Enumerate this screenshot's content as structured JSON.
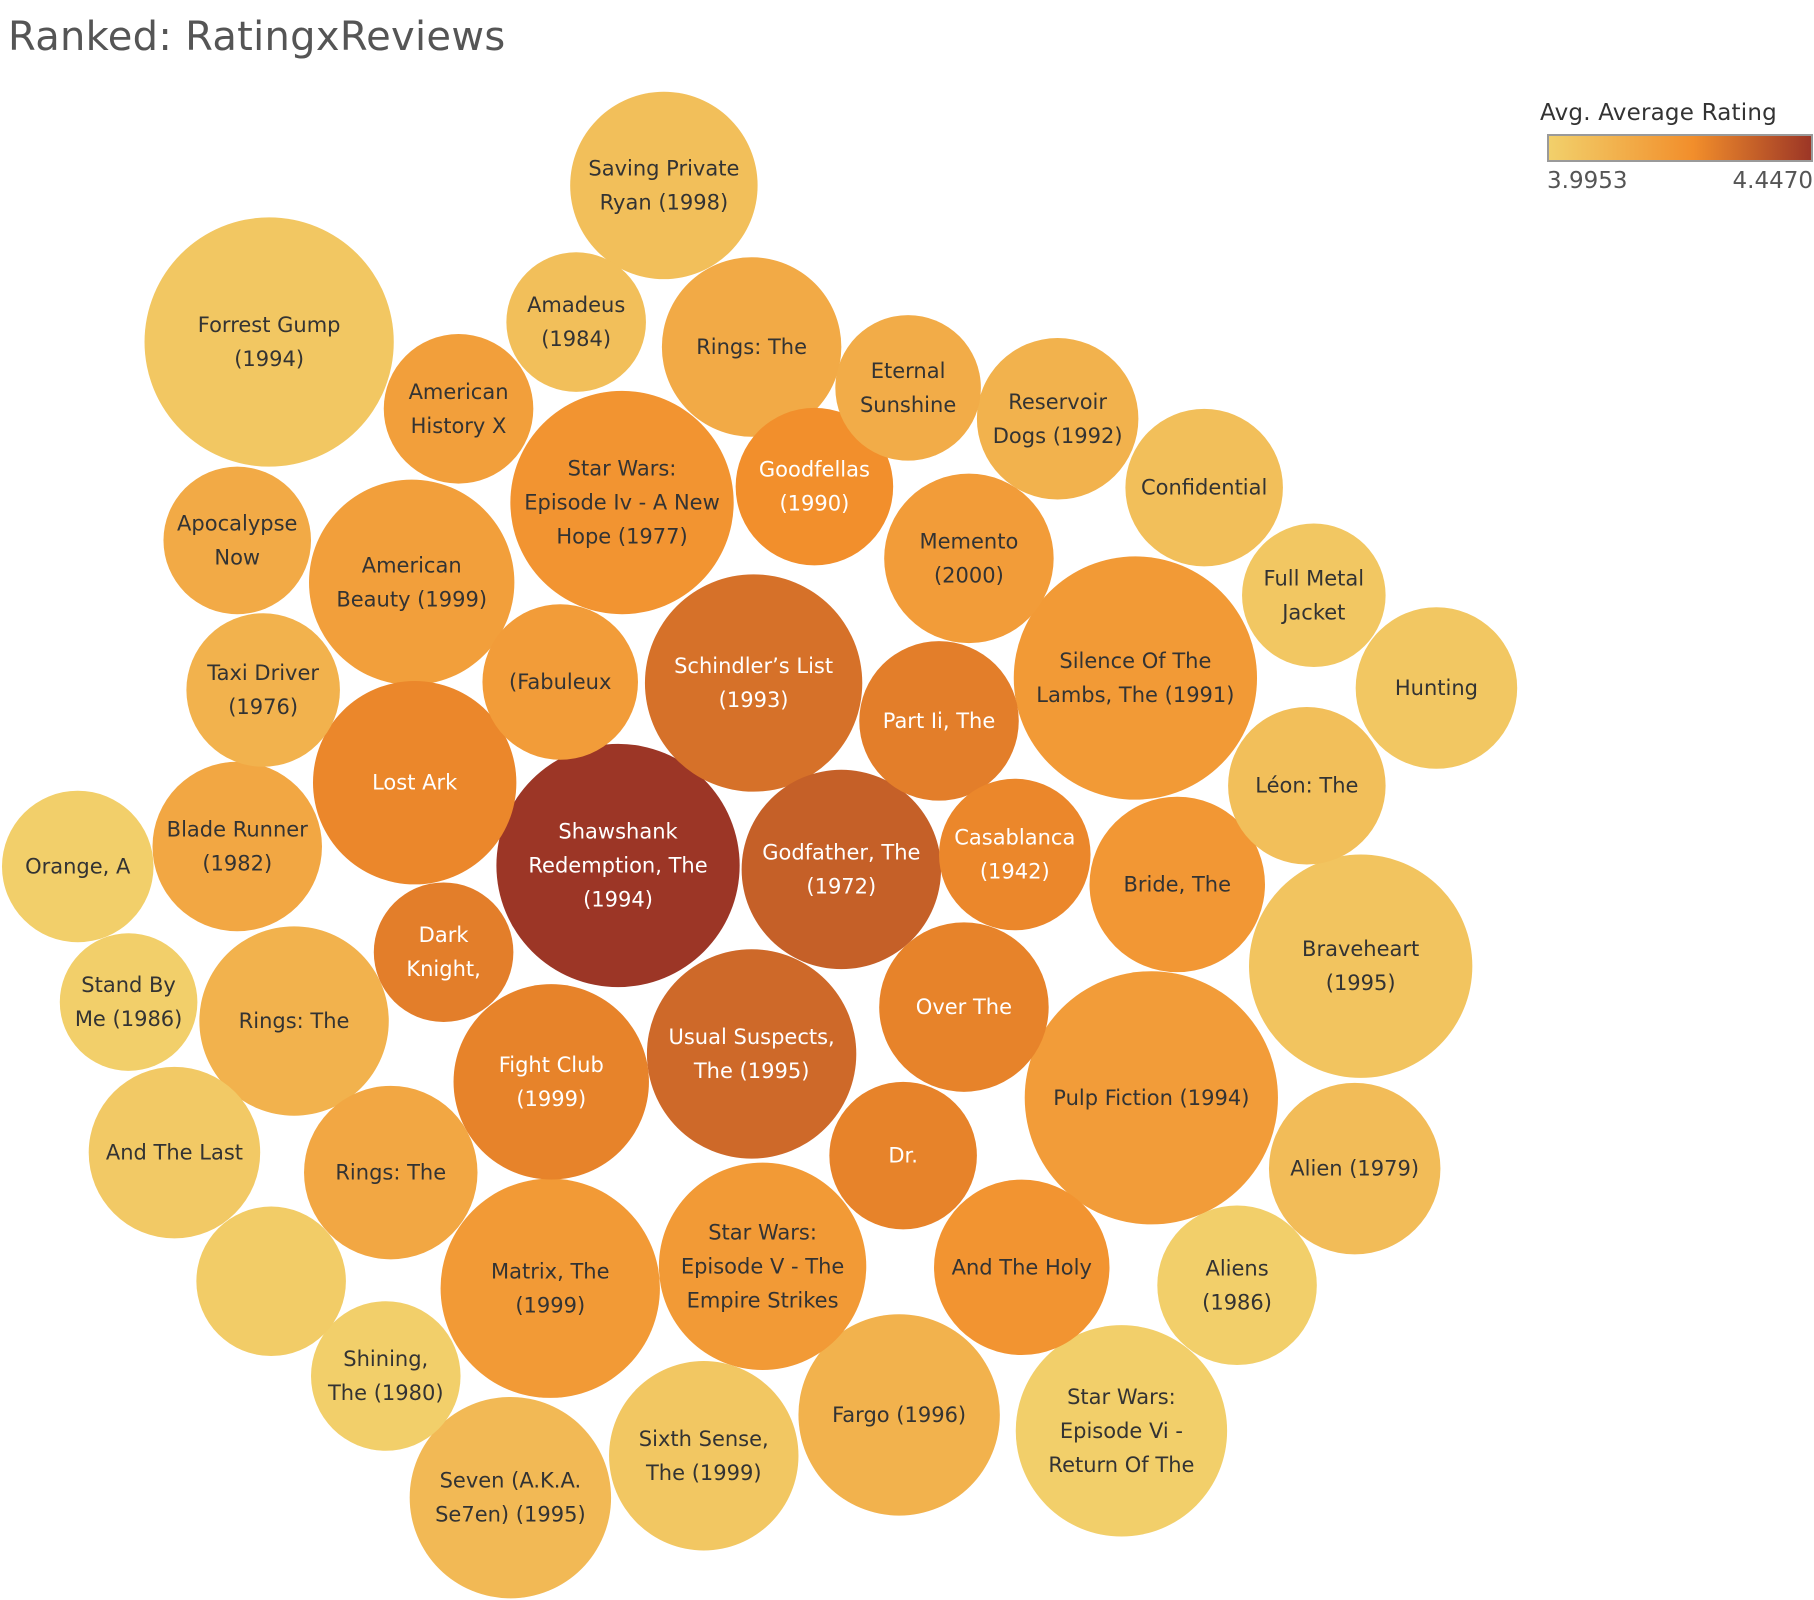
{
  "chart_data": {
    "type": "bubble",
    "title": "Ranked: RatingxReviews",
    "legend": {
      "title": "Avg. Average Rating",
      "min_label": "3.9953",
      "max_label": "4.4470",
      "min_value": 3.9953,
      "max_value": 4.447,
      "color_low": "#f2d06b",
      "color_mid": "#f28e2b",
      "color_high": "#9c3626",
      "position": "top-right"
    },
    "colors": {
      "dark_text": "#333333",
      "light_text": "#ffffff",
      "title_text": "#555555"
    },
    "bubbles": [
      {
        "label": [
          "Shawshank",
          "Redemption, The",
          "(1994)"
        ],
        "rating": 4.447
      },
      {
        "label": [
          "Forrest Gump",
          "(1994)"
        ],
        "rating": 4.03
      },
      {
        "label": [
          "Pulp Fiction (1994)"
        ],
        "rating": 4.19
      },
      {
        "label": [
          "Silence Of The",
          "Lambs, The (1991)"
        ],
        "rating": 4.2
      },
      {
        "label": [
          "Schindler’s List",
          "(1993)"
        ],
        "rating": 4.31
      },
      {
        "label": [
          "Star Wars:",
          "Episode Iv - A New",
          "Hope (1977)"
        ],
        "rating": 4.22
      },
      {
        "label": [
          "Braveheart",
          "(1995)"
        ],
        "rating": 4.04
      },
      {
        "label": [
          "Usual Suspects,",
          "The (1995)"
        ],
        "rating": 4.33
      },
      {
        "label": [
          "Godfather, The",
          "(1972)"
        ],
        "rating": 4.35
      },
      {
        "label": [
          "Matrix, The",
          "(1999)"
        ],
        "rating": 4.2
      },
      {
        "label": [
          "American",
          "Beauty (1999)"
        ],
        "rating": 4.18
      },
      {
        "label": [
          "Star Wars:",
          "Episode Vi -",
          "Return Of The"
        ],
        "rating": 4.0
      },
      {
        "label": [
          "Lost Ark"
        ],
        "rating": 4.26
      },
      {
        "label": [
          "Fargo (1996)"
        ],
        "rating": 4.11
      },
      {
        "label": [
          "Star Wars:",
          "Episode V - The",
          "Empire Strikes"
        ],
        "rating": 4.2
      },
      {
        "label": [
          "Fight Club",
          "(1999)"
        ],
        "rating": 4.27
      },
      {
        "label": [
          "Seven (A.K.A.",
          "Se7en) (1995)"
        ],
        "rating": 4.08
      },
      {
        "label": [
          "Sixth Sense,",
          "The (1999)"
        ],
        "rating": 4.03
      },
      {
        "label": [
          "Saving Private",
          "Ryan (1998)"
        ],
        "rating": 4.06
      },
      {
        "label": [
          "Rings: The"
        ],
        "rating": 4.14
      },
      {
        "label": [
          "Rings: The"
        ],
        "rating": 4.11
      },
      {
        "label": [
          "Bride, The"
        ],
        "rating": 4.21
      },
      {
        "label": [
          "And The Holy"
        ],
        "rating": 4.22
      },
      {
        "label": [
          "Part Ii, The"
        ],
        "rating": 4.28
      },
      {
        "label": [
          "Memento",
          "(2000)"
        ],
        "rating": 4.19
      },
      {
        "label": [
          "Over The"
        ],
        "rating": 4.27
      },
      {
        "label": [
          "Goodfellas",
          "(1990)"
        ],
        "rating": 4.24
      },
      {
        "label": [
          "Rings: The"
        ],
        "rating": 4.15
      },
      {
        "label": [
          "Alien (1979)"
        ],
        "rating": 4.07
      },
      {
        "label": [
          "And The Last"
        ],
        "rating": 4.02
      },
      {
        "label": [
          "Reservoir",
          "Dogs (1992)"
        ],
        "rating": 4.11
      },
      {
        "label": [
          "Casablanca",
          "(1942)"
        ],
        "rating": 4.26
      },
      {
        "label": [
          "(Fabuleux"
        ],
        "rating": 4.19
      },
      {
        "label": [
          "Blade Runner",
          "(1982)"
        ],
        "rating": 4.15
      },
      {
        "label": [
          "Confidential"
        ],
        "rating": 4.06
      },
      {
        "label": [
          "Hunting"
        ],
        "rating": 4.03
      },
      {
        "label": [
          "Aliens",
          "(1986)"
        ],
        "rating": 4.0
      },
      {
        "label": [
          "Dr."
        ],
        "rating": 4.27
      },
      {
        "label": [
          "Léon: The"
        ],
        "rating": 4.06
      },
      {
        "label": [
          "Taxi Driver",
          "(1976)"
        ],
        "rating": 4.11
      },
      {
        "label": [
          "Shining,",
          "The (1980)"
        ],
        "rating": 4.0
      },
      {
        "label": [
          "Apocalypse",
          "Now"
        ],
        "rating": 4.14
      },
      {
        "label": [
          "American",
          "History X"
        ],
        "rating": 4.18
      },
      {
        "label": [
          "Orange, A"
        ],
        "rating": 4.0
      },
      {
        "label": [
          "Eternal",
          "Sunshine"
        ],
        "rating": 4.13
      },
      {
        "label": [
          "Full Metal",
          "Jacket"
        ],
        "rating": 4.03
      },
      {
        "label": [
          "Dark",
          "Knight,"
        ],
        "rating": 4.28
      },
      {
        "label": [
          "Amadeus",
          "(1984)"
        ],
        "rating": 4.06
      },
      {
        "label": [
          "Stand By",
          "Me (1986)"
        ],
        "rating": 4.0
      },
      {
        "label": [],
        "rating": 4.01
      }
    ]
  }
}
